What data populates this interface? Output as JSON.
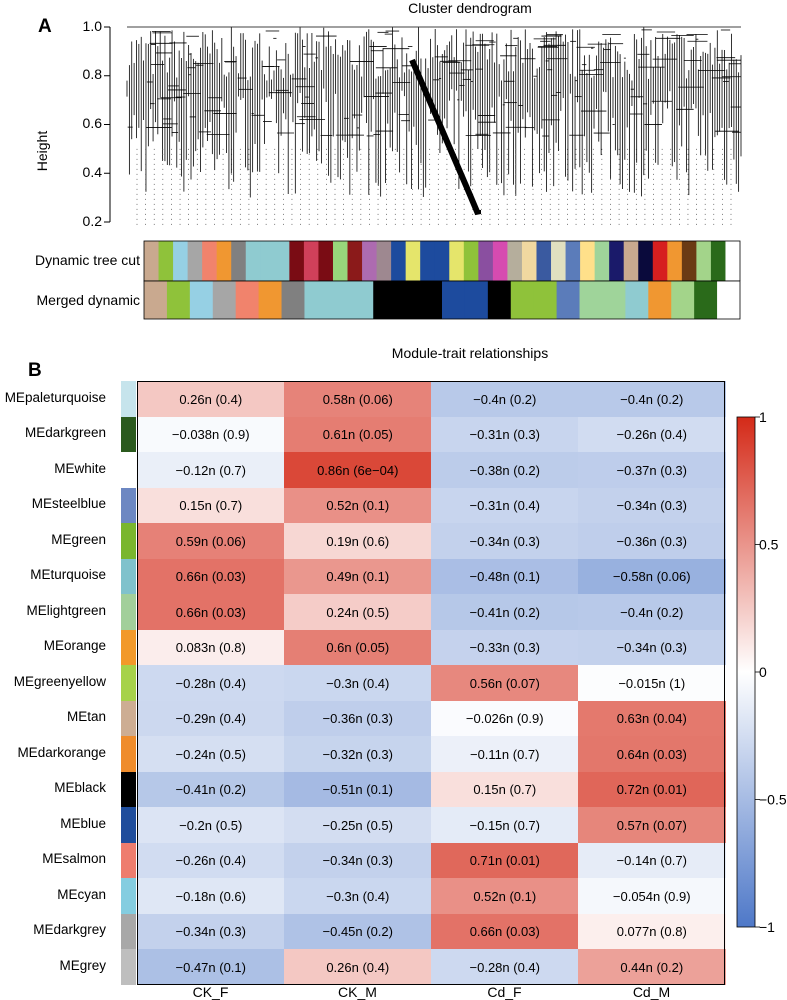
{
  "panel_a": {
    "label": "A",
    "title": "Cluster dendrogram",
    "ylabel": "Height",
    "yticks": [
      "0.2",
      "0.4",
      "0.6",
      "0.8",
      "1.0"
    ],
    "tracks": [
      "Dynamic tree cut",
      "Merged dynamic"
    ],
    "dynamic_colors": [
      "#c9a98f",
      "#8fc23a",
      "#96d0e4",
      "#a6a6a6",
      "#f1836c",
      "#f09731",
      "#808080",
      "#8fcbd0",
      "#8fcbd0",
      "#8fcbd0",
      "#7a0c14",
      "#d0405a",
      "#7a0c14",
      "#98d67b",
      "#8b1a1a",
      "#ad6bb0",
      "#9e8890",
      "#1d4b9e",
      "#e5e56b",
      "#1d4b9e",
      "#1d4b9e",
      "#e5e56b",
      "#8fc23a",
      "#8a4fa0",
      "#d64bb0",
      "#b5ae9c",
      "#f1d8a0",
      "#3a5aa0",
      "#e0e0c0",
      "#5b7cba",
      "#ffe08a",
      "#9fd49a",
      "#1a1a6a",
      "#c9a98f",
      "#0a0a3c",
      "#d61f1f",
      "#f09731",
      "#6a3a14",
      "#a3d48a",
      "#2a6a1a",
      "#ffffff"
    ],
    "merged_colors": [
      "#c9a98f",
      "#8fc23a",
      "#96d0e4",
      "#a6a6a6",
      "#f1836c",
      "#f09731",
      "#808080",
      "#8fcbd0",
      "#8fcbd0",
      "#8fcbd0",
      "#000000",
      "#000000",
      "#000000",
      "#1d4b9e",
      "#1d4b9e",
      "#000000",
      "#8fc23a",
      "#8fc23a",
      "#5b7cba",
      "#9fd49a",
      "#9fd49a",
      "#8fcbd0",
      "#f09731",
      "#a3d48a",
      "#2a6a1a",
      "#ffffff"
    ]
  },
  "panel_b": {
    "label": "B",
    "title": "Module-trait relationships",
    "colorbar_ticks": [
      "1",
      "0.5",
      "0",
      "−0.5",
      "−1"
    ]
  },
  "chart_data": {
    "type": "heatmap",
    "title": "Module-trait relationships",
    "columns": [
      "CK_F",
      "CK_M",
      "Cd_F",
      "Cd_M"
    ],
    "rows": [
      "MEpaleturquoise",
      "MEdarkgreen",
      "MEwhite",
      "MEsteelblue",
      "MEgreen",
      "MEturquoise",
      "MElightgreen",
      "MEorange",
      "MEgreenyellow",
      "MEtan",
      "MEdarkorange",
      "MEblack",
      "MEblue",
      "MEsalmon",
      "MEcyan",
      "MEdarkgrey",
      "MEgrey"
    ],
    "row_colors": [
      "#c6e4ec",
      "#2b5a1e",
      "#ffffff",
      "#6d87c2",
      "#7ab62e",
      "#80c2cc",
      "#a2cf9a",
      "#f2992a",
      "#a6d24a",
      "#cdad93",
      "#ef8c2c",
      "#000000",
      "#1f4d9c",
      "#ee7d6e",
      "#84cde0",
      "#a8a8a8",
      "#bebebe"
    ],
    "values": [
      [
        0.26,
        0.58,
        -0.4,
        -0.4
      ],
      [
        -0.038,
        0.61,
        -0.31,
        -0.26
      ],
      [
        -0.12,
        0.86,
        -0.38,
        -0.37
      ],
      [
        0.15,
        0.52,
        -0.31,
        -0.34
      ],
      [
        0.59,
        0.19,
        -0.34,
        -0.36
      ],
      [
        0.66,
        0.49,
        -0.48,
        -0.58
      ],
      [
        0.66,
        0.24,
        -0.41,
        -0.4
      ],
      [
        0.083,
        0.6,
        -0.33,
        -0.34
      ],
      [
        -0.28,
        -0.3,
        0.56,
        -0.015
      ],
      [
        -0.29,
        -0.36,
        -0.026,
        0.63
      ],
      [
        -0.24,
        -0.32,
        -0.11,
        0.64
      ],
      [
        -0.41,
        -0.51,
        0.15,
        0.72
      ],
      [
        -0.2,
        -0.25,
        -0.15,
        0.57
      ],
      [
        -0.26,
        -0.34,
        0.71,
        -0.14
      ],
      [
        -0.18,
        -0.3,
        0.52,
        -0.054
      ],
      [
        -0.34,
        -0.45,
        0.66,
        0.077
      ],
      [
        -0.47,
        0.26,
        -0.28,
        0.44
      ]
    ],
    "labels": [
      [
        "0.26n (0.4)",
        "0.58n (0.06)",
        "−0.4n (0.2)",
        "−0.4n (0.2)"
      ],
      [
        "−0.038n (0.9)",
        "0.61n (0.05)",
        "−0.31n (0.3)",
        "−0.26n (0.4)"
      ],
      [
        "−0.12n (0.7)",
        "0.86n (6e−04)",
        "−0.38n (0.2)",
        "−0.37n (0.3)"
      ],
      [
        "0.15n (0.7)",
        "0.52n (0.1)",
        "−0.31n (0.4)",
        "−0.34n (0.3)"
      ],
      [
        "0.59n (0.06)",
        "0.19n (0.6)",
        "−0.34n (0.3)",
        "−0.36n (0.3)"
      ],
      [
        "0.66n (0.03)",
        "0.49n (0.1)",
        "−0.48n (0.1)",
        "−0.58n (0.06)"
      ],
      [
        "0.66n (0.03)",
        "0.24n (0.5)",
        "−0.41n (0.2)",
        "−0.4n (0.2)"
      ],
      [
        "0.083n (0.8)",
        "0.6n (0.05)",
        "−0.33n (0.3)",
        "−0.34n (0.3)"
      ],
      [
        "−0.28n (0.4)",
        "−0.3n (0.4)",
        "0.56n (0.07)",
        "−0.015n (1)"
      ],
      [
        "−0.29n (0.4)",
        "−0.36n (0.3)",
        "−0.026n (0.9)",
        "0.63n (0.04)"
      ],
      [
        "−0.24n (0.5)",
        "−0.32n (0.3)",
        "−0.11n (0.7)",
        "0.64n (0.03)"
      ],
      [
        "−0.41n (0.2)",
        "−0.51n (0.1)",
        "0.15n (0.7)",
        "0.72n (0.01)"
      ],
      [
        "−0.2n (0.5)",
        "−0.25n (0.5)",
        "−0.15n (0.7)",
        "0.57n (0.07)"
      ],
      [
        "−0.26n (0.4)",
        "−0.34n (0.3)",
        "0.71n (0.01)",
        "−0.14n (0.7)"
      ],
      [
        "−0.18n (0.6)",
        "−0.3n (0.4)",
        "0.52n (0.1)",
        "−0.054n (0.9)"
      ],
      [
        "−0.34n (0.3)",
        "−0.45n (0.2)",
        "0.66n (0.03)",
        "0.077n (0.8)"
      ],
      [
        "−0.47n (0.1)",
        "0.26n (0.4)",
        "−0.28n (0.4)",
        "0.44n (0.2)"
      ]
    ],
    "colorscale": {
      "min": -1,
      "mid": 0,
      "max": 1,
      "low": "#4e78c8",
      "mid_color": "#ffffff",
      "high": "#d42a18"
    },
    "grid": false,
    "legend": "right"
  }
}
